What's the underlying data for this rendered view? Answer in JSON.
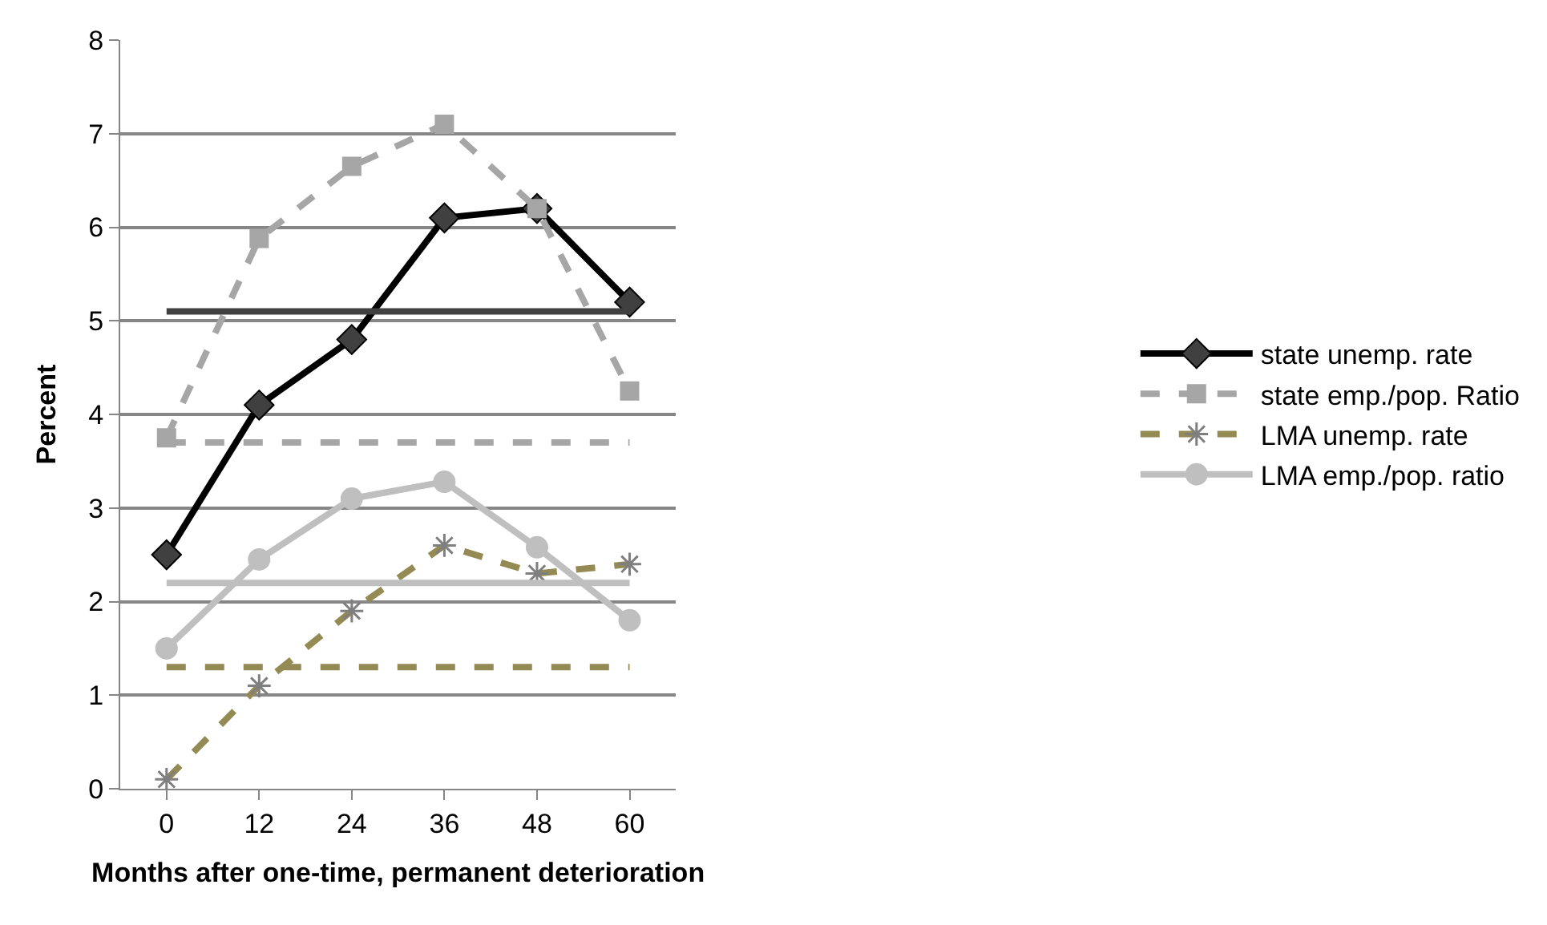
{
  "chart_data": {
    "type": "line",
    "xlabel": "Months after one-time, permanent deterioration",
    "ylabel": "Percent",
    "categories": [
      "0",
      "12",
      "24",
      "36",
      "48",
      "60"
    ],
    "ylim": [
      0,
      8
    ],
    "yticks": [
      0,
      1,
      2,
      3,
      4,
      5,
      6,
      7,
      8
    ],
    "grid": "y",
    "legend": "right",
    "series": [
      {
        "name": "state unemp. rate",
        "color": "#000000",
        "marker": "diamond",
        "line_style": "solid",
        "values": [
          2.5,
          4.1,
          4.8,
          6.1,
          6.2,
          5.2
        ]
      },
      {
        "name": "state emp./pop. Ratio",
        "color": "#a6a6a6",
        "marker": "square",
        "line_style": "dashed",
        "values": [
          3.75,
          5.88,
          6.65,
          7.1,
          6.2,
          4.25
        ]
      },
      {
        "name": "LMA unemp. rate",
        "color": "#948a54",
        "marker": "cross",
        "line_style": "dashed",
        "values": [
          0.1,
          1.1,
          1.9,
          2.6,
          2.3,
          2.4
        ]
      },
      {
        "name": "LMA emp./pop. ratio",
        "color": "#bfbfbf",
        "marker": "circle",
        "line_style": "solid",
        "values": [
          1.5,
          2.45,
          3.1,
          3.28,
          2.58,
          1.8
        ]
      },
      {
        "color": "#404040",
        "marker": "none",
        "line_style": "solid",
        "values": [
          5.1,
          5.1,
          5.1,
          5.1,
          5.1,
          5.1
        ]
      },
      {
        "color": "#a6a6a6",
        "marker": "none",
        "line_style": "dashed",
        "values": [
          3.7,
          3.7,
          3.7,
          3.7,
          3.7,
          3.7
        ]
      },
      {
        "color": "#948a54",
        "marker": "none",
        "line_style": "dashed",
        "values": [
          1.3,
          1.3,
          1.3,
          1.3,
          1.3,
          1.3
        ]
      },
      {
        "color": "#bfbfbf",
        "marker": "none",
        "line_style": "solid",
        "values": [
          2.2,
          2.2,
          2.2,
          2.2,
          2.2,
          2.2
        ]
      }
    ]
  }
}
